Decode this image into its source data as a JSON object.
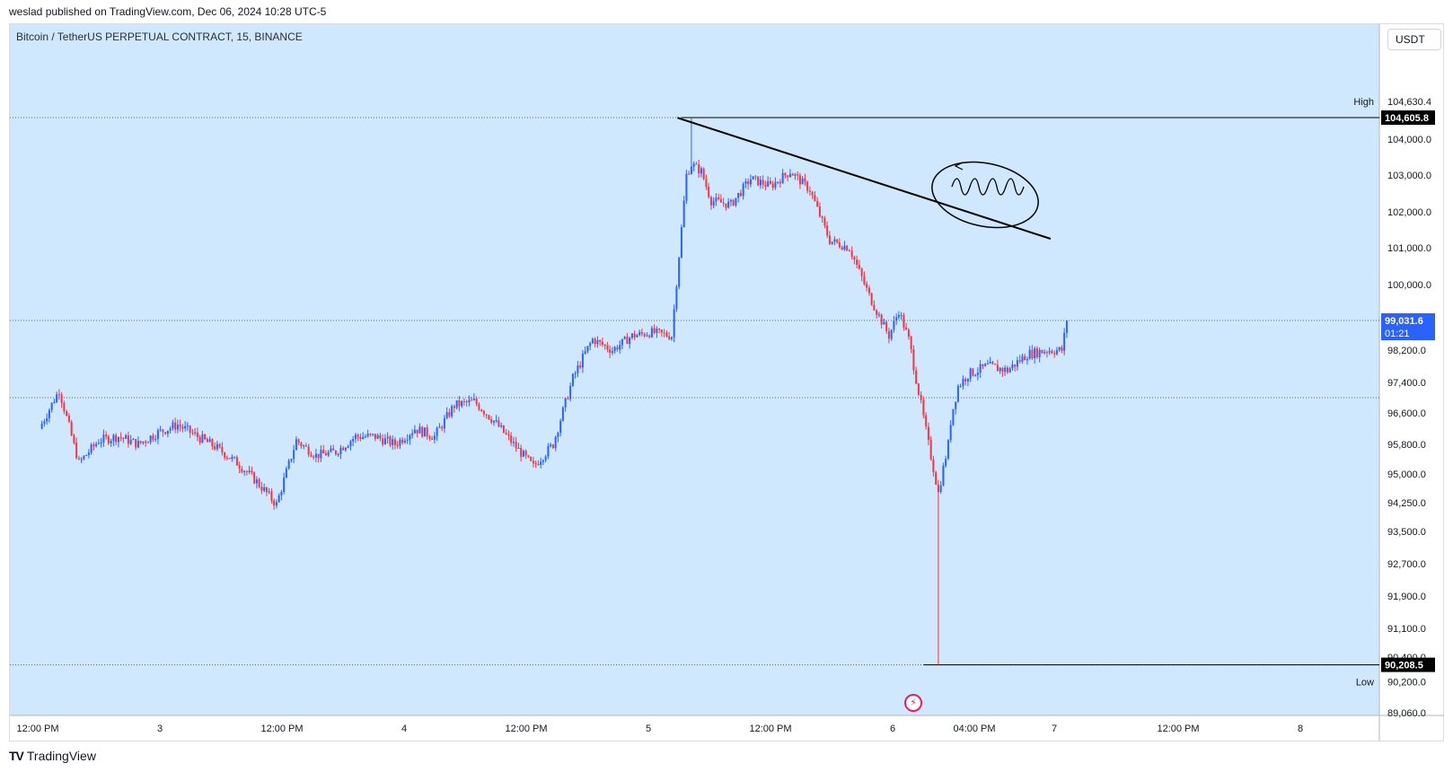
{
  "header": {
    "published_by": "weslad published on TradingView.com, Dec 06, 2024 10:28 UTC-5",
    "symbol": "Bitcoin / TetherUS PERPETUAL CONTRACT, 15, BINANCE",
    "currency_button": "USDT",
    "brand": "TradingView"
  },
  "colors": {
    "background": "#cfe8fd",
    "up": "#2962ff",
    "down": "#f23645",
    "trendline": "#000000"
  },
  "chart_data": {
    "type": "candlestick",
    "title": "Bitcoin / TetherUS PERPETUAL CONTRACT, 15, BINANCE",
    "xlabel": "",
    "ylabel": "",
    "x_tick_labels": [
      "12:00 PM",
      "3",
      "12:00 PM",
      "4",
      "12:00 PM",
      "5",
      "12:00 PM",
      "6",
      "04:00 PM",
      "7",
      "12:00 PM",
      "8"
    ],
    "y_tick_labels": [
      "104,000.0",
      "103,000.0",
      "102,000.0",
      "101,000.0",
      "100,000.0",
      "98,200.0",
      "97,400.0",
      "96,600.0",
      "95,800.0",
      "95,000.0",
      "94,250.0",
      "93,500.0",
      "92,700.0",
      "91,900.0",
      "91,100.0",
      "90,400.0",
      "89,060.0"
    ],
    "price_labels": {
      "high_text": "High",
      "high_value": "104,630.4",
      "high_marker": "104,605.8",
      "current_price": "99,031.6",
      "countdown": "01:21",
      "low_marker": "90,208.5",
      "low_text": "Low",
      "low_value": "90,200.0"
    },
    "close_path_hours": [
      0,
      2,
      4,
      6,
      8,
      10,
      12,
      14,
      16,
      18,
      20,
      22,
      24,
      26,
      28,
      30,
      32,
      34,
      36,
      38,
      40,
      42,
      44,
      46,
      48,
      50,
      52,
      54,
      56,
      58,
      60,
      62,
      64,
      65.5,
      66,
      67,
      68,
      70,
      72,
      74,
      76,
      78,
      80,
      82,
      84,
      86,
      87,
      88,
      90,
      91,
      92,
      92.3,
      93,
      94,
      96,
      98,
      100,
      102,
      103.5,
      104
    ],
    "close_path_prices": [
      96200,
      97200,
      95300,
      95900,
      96000,
      95800,
      96100,
      96300,
      96000,
      95700,
      95300,
      94800,
      94200,
      95900,
      95500,
      95600,
      96000,
      96000,
      95800,
      96200,
      96000,
      96800,
      96900,
      96400,
      95800,
      95200,
      95800,
      97500,
      98500,
      98200,
      98600,
      98700,
      98600,
      103000,
      103300,
      103100,
      102300,
      102200,
      102900,
      102700,
      103100,
      102600,
      101200,
      101000,
      99700,
      98600,
      99300,
      98500,
      95800,
      94500,
      95800,
      96500,
      97300,
      97600,
      97800,
      97700,
      98100,
      98200,
      98200,
      99000
    ],
    "trendline_hours": [
      65.5,
      100
    ],
    "trendline_prices": [
      104600,
      101200
    ],
    "series": [
      {
        "values": []
      }
    ]
  }
}
